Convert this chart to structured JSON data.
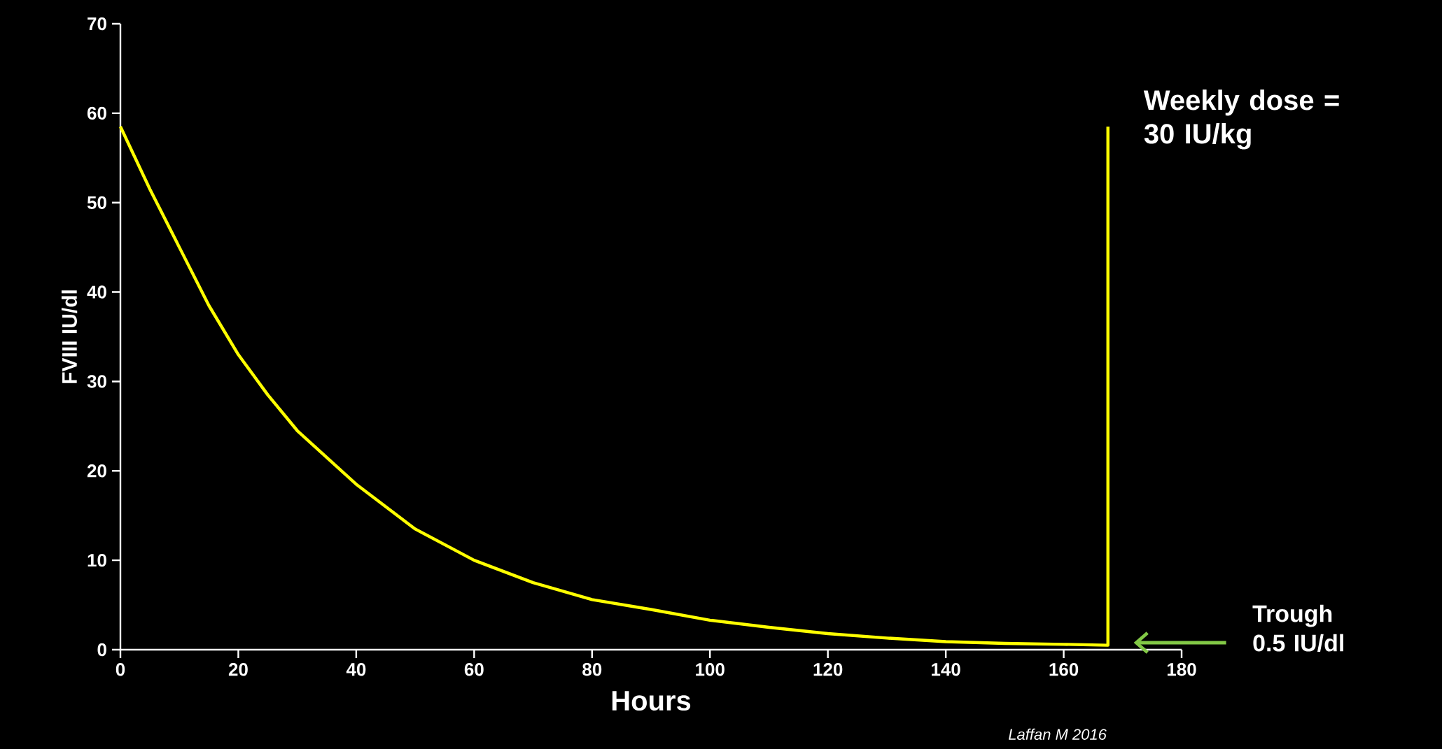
{
  "chart_data": {
    "type": "line",
    "xlabel": "Hours",
    "ylabel": "FVIII IU/dl",
    "x": [
      0,
      5,
      10,
      15,
      20,
      25,
      30,
      35,
      40,
      50,
      60,
      70,
      80,
      90,
      100,
      110,
      120,
      130,
      140,
      150,
      160,
      167.5,
      167.5
    ],
    "series": [
      {
        "color": "#ffff00",
        "values": [
          58.5,
          51.5,
          45,
          38.5,
          33,
          28.5,
          24.5,
          21.5,
          18.5,
          13.5,
          10,
          7.5,
          5.6,
          4.5,
          3.3,
          2.5,
          1.8,
          1.3,
          0.9,
          0.7,
          0.6,
          0.5,
          58.5
        ]
      }
    ],
    "xlim": [
      0,
      180
    ],
    "ylim": [
      0,
      70
    ],
    "xticks": [
      0,
      20,
      40,
      60,
      80,
      100,
      120,
      140,
      160,
      180
    ],
    "yticks": [
      0,
      10,
      20,
      30,
      40,
      50,
      60,
      70
    ],
    "annotations": [
      {
        "text": "Weekly dose = 30 IU/kg",
        "x": 167.5,
        "y": 58.5
      },
      "Trough 0.5 IU/dl",
      "Laffan M 2016"
    ]
  }
}
